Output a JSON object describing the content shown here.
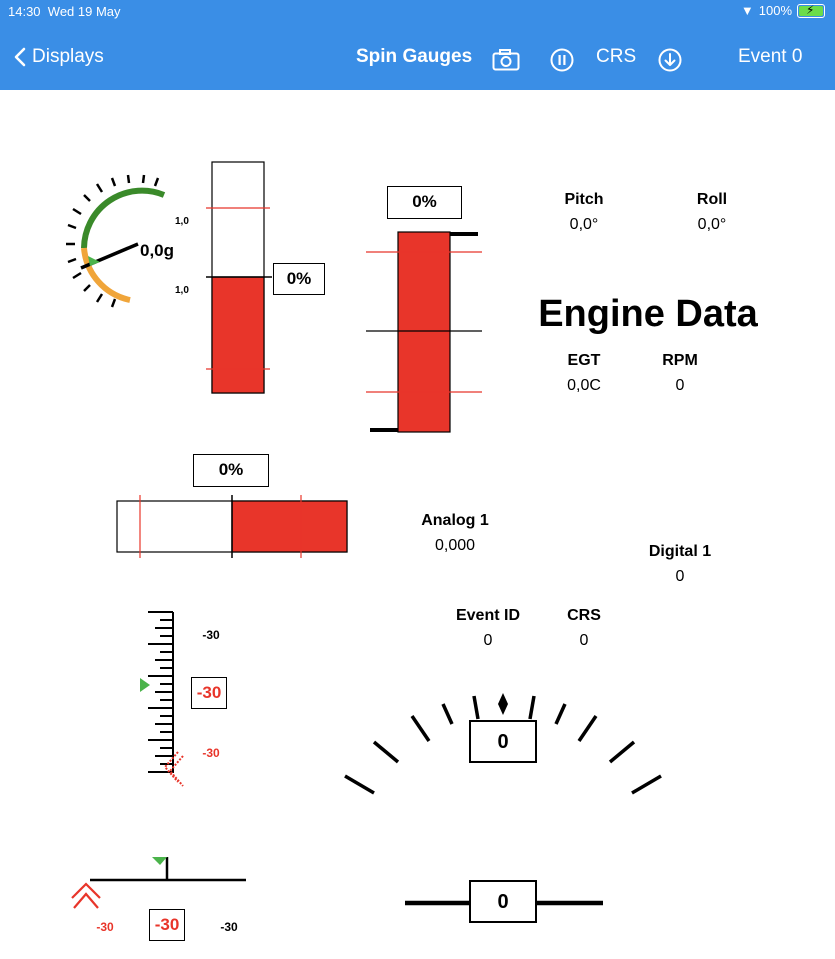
{
  "status": {
    "time": "14:30",
    "date": "Wed 19 May",
    "battery": "100%"
  },
  "nav": {
    "back_label": "Displays",
    "title": "Spin Gauges",
    "crs": "CRS",
    "event": "Event 0"
  },
  "colors": {
    "bar_blue": "#3a8ee6",
    "red": "#e8352a",
    "green": "#3a8a2a",
    "orange": "#f0a53a"
  },
  "g_gauge": {
    "value": "0,0g",
    "upper": "1,0",
    "lower": "1,0"
  },
  "vbar1": {
    "percent": "0%"
  },
  "vbar2": {
    "percent": "0%"
  },
  "hbar": {
    "percent": "0%"
  },
  "pitch": {
    "label": "Pitch",
    "value": "0,0°"
  },
  "roll": {
    "label": "Roll",
    "value": "0,0°"
  },
  "engine": {
    "title": "Engine Data"
  },
  "egt": {
    "label": "EGT",
    "value": "0,0C"
  },
  "rpm": {
    "label": "RPM",
    "value": "0"
  },
  "analog1": {
    "label": "Analog 1",
    "value": "0,000"
  },
  "digital1": {
    "label": "Digital 1",
    "value": "0"
  },
  "event_id": {
    "label": "Event ID",
    "value": "0"
  },
  "crs_field": {
    "label": "CRS",
    "value": "0"
  },
  "vtape": {
    "top": "-30",
    "box": "-30",
    "bottom": "-30"
  },
  "htape": {
    "left": "-30",
    "box": "-30",
    "right": "-30"
  },
  "arc_gauge": {
    "value": "0"
  },
  "hline_gauge": {
    "value": "0"
  }
}
